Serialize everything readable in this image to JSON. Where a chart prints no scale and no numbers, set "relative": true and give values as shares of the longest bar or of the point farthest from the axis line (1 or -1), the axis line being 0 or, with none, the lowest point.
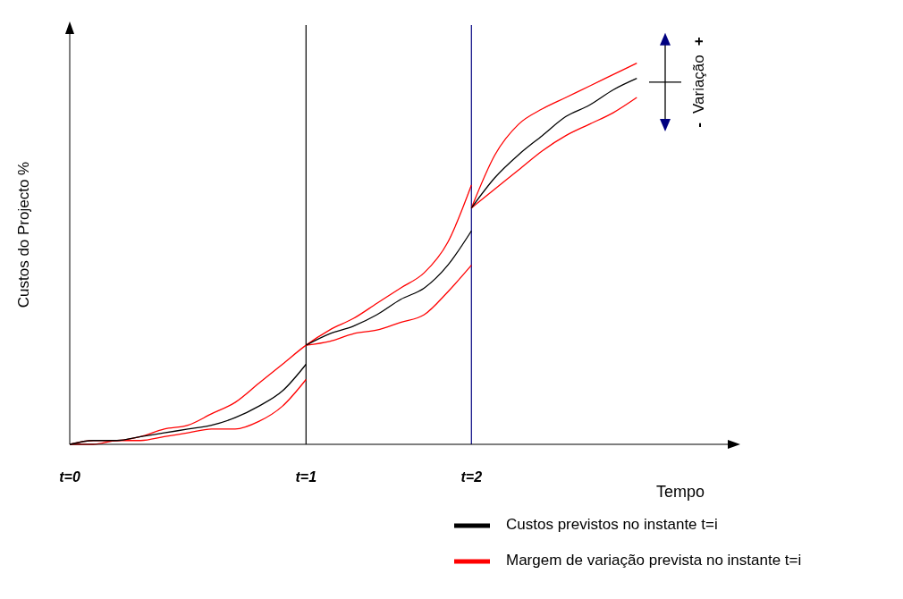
{
  "chart_data": {
    "type": "line",
    "relative": true,
    "xlabel": "Tempo",
    "ylabel": "Custos do Projecto %",
    "categories": [
      "t=0",
      null,
      null,
      null,
      null,
      null,
      null,
      null,
      null,
      null,
      "t=1",
      null,
      null,
      null,
      null,
      null,
      null,
      "t=2",
      null,
      null,
      null,
      null,
      null,
      null,
      null,
      null,
      null,
      null,
      null
    ],
    "tick_labels": "x",
    "legend": "bottom right",
    "line_style": "solid",
    "ref_lines": [
      {
        "axis": "x",
        "value": "t=1",
        "color": "#000000"
      },
      {
        "axis": "x",
        "value": "t=2",
        "color": "#000080"
      }
    ],
    "annotations": [
      "-",
      "Variação",
      "+"
    ],
    "series": [
      {
        "name": "Custos previstos no instante t=i",
        "color": "#000000",
        "values": [
          0,
          0.01,
          0.01,
          0.02,
          0.03,
          0.04,
          0.05,
          0.07,
          0.1,
          0.14,
          0.21,
          null,
          null,
          null,
          null,
          null,
          null,
          null,
          null,
          null,
          null,
          null,
          null,
          null,
          null,
          null,
          null,
          null,
          null
        ]
      },
      {
        "color": "#000000",
        "values": [
          null,
          null,
          null,
          null,
          null,
          null,
          null,
          null,
          null,
          null,
          0.26,
          0.29,
          0.31,
          0.34,
          0.38,
          0.41,
          0.47,
          0.56,
          null,
          null,
          null,
          null,
          null,
          null,
          null,
          null,
          null,
          null,
          null
        ]
      },
      {
        "color": "#000000",
        "values": [
          null,
          null,
          null,
          null,
          null,
          null,
          null,
          null,
          null,
          null,
          null,
          null,
          null,
          null,
          null,
          null,
          null,
          0.62,
          0.7,
          0.76,
          0.81,
          0.86,
          0.89,
          0.93,
          0.96,
          null,
          null,
          null,
          null
        ]
      },
      {
        "name": "Margem de variação prevista no instante t=i",
        "color": "#ff0000",
        "values": [
          0,
          0.01,
          0.01,
          0.02,
          0.04,
          0.05,
          0.08,
          0.11,
          0.16,
          0.21,
          0.26,
          0.3,
          0.33,
          0.37,
          0.41,
          0.45,
          0.53,
          0.68,
          null,
          null,
          null,
          null,
          null,
          null,
          null,
          null,
          null,
          null,
          null
        ]
      },
      {
        "color": "#ff0000",
        "values": [
          null,
          null,
          null,
          null,
          null,
          null,
          null,
          null,
          null,
          null,
          null,
          null,
          null,
          null,
          null,
          null,
          null,
          0.62,
          0.76,
          0.84,
          0.88,
          0.91,
          0.94,
          0.97,
          1,
          null,
          null,
          null,
          null
        ]
      },
      {
        "color": "#ff0000",
        "values": [
          0,
          0,
          0.01,
          0.01,
          0.02,
          0.03,
          0.04,
          0.04,
          0.06,
          0.1,
          0.17,
          null,
          null,
          null,
          null,
          null,
          null,
          null,
          null,
          null,
          null,
          null,
          null,
          null,
          null,
          null,
          null,
          null,
          null
        ]
      },
      {
        "color": "#ff0000",
        "values": [
          null,
          null,
          null,
          null,
          null,
          null,
          null,
          null,
          null,
          null,
          0.26,
          0.27,
          0.29,
          0.3,
          0.32,
          0.34,
          0.4,
          0.47,
          null,
          null,
          null,
          null,
          null,
          null,
          null,
          null,
          null,
          null,
          null
        ]
      },
      {
        "color": "#ff0000",
        "values": [
          null,
          null,
          null,
          null,
          null,
          null,
          null,
          null,
          null,
          null,
          null,
          null,
          null,
          null,
          null,
          null,
          null,
          0.62,
          0.67,
          0.72,
          0.77,
          0.81,
          0.84,
          0.87,
          0.91,
          null,
          null,
          null,
          null
        ]
      }
    ]
  }
}
